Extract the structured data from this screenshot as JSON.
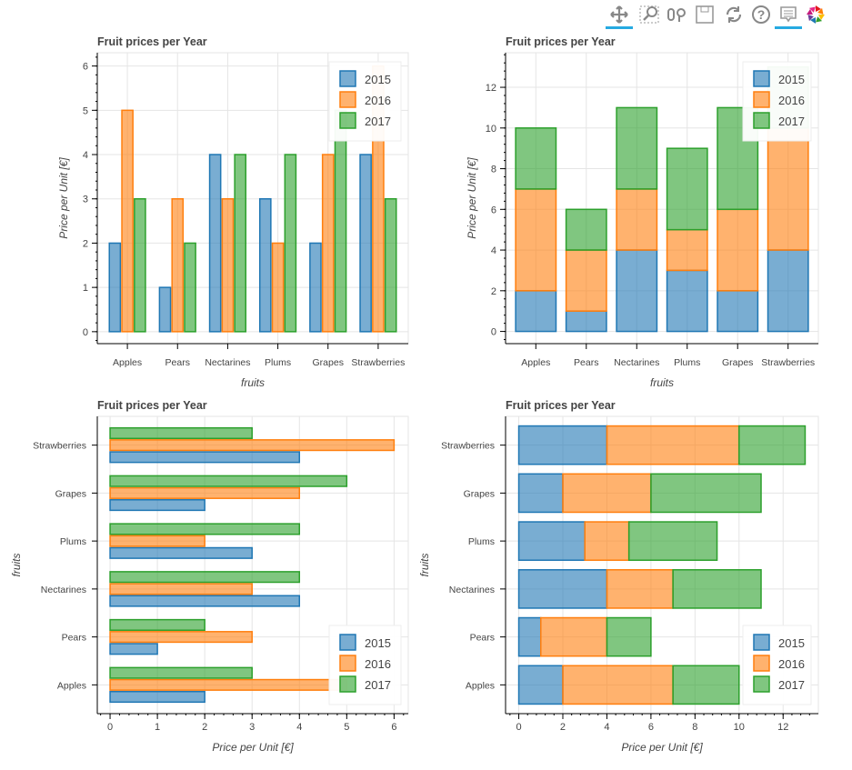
{
  "toolbar": {
    "tools": [
      {
        "icon": "pan-icon",
        "active": true
      },
      {
        "icon": "box-zoom-icon",
        "active": false
      },
      {
        "icon": "wheel-zoom-icon",
        "active": false
      },
      {
        "icon": "save-icon",
        "active": false
      },
      {
        "icon": "reset-icon",
        "active": false
      },
      {
        "icon": "help-icon",
        "active": false
      },
      {
        "icon": "hover-icon",
        "active": true
      },
      {
        "icon": "bokeh-logo-icon",
        "active": false
      }
    ]
  },
  "colors": {
    "2015": "#1f77b4",
    "2016": "#ff7f0e",
    "2017": "#2ca02c"
  },
  "chart_data": [
    {
      "type": "bar",
      "orientation": "vertical",
      "mode": "grouped",
      "title": "Fruit prices per Year",
      "xlabel": "fruits",
      "ylabel": "Price per Unit [€]",
      "categories": [
        "Apples",
        "Pears",
        "Nectarines",
        "Plums",
        "Grapes",
        "Strawberries"
      ],
      "series": [
        {
          "name": "2015",
          "values": [
            2,
            1,
            4,
            3,
            2,
            4
          ]
        },
        {
          "name": "2016",
          "values": [
            5,
            3,
            3,
            2,
            4,
            6
          ]
        },
        {
          "name": "2017",
          "values": [
            3,
            2,
            4,
            4,
            5,
            3
          ]
        }
      ],
      "ylim": [
        -0.27,
        6.3
      ],
      "ticks": [
        0,
        1,
        2,
        3,
        4,
        5,
        6
      ],
      "grid": true,
      "legend": "top-right"
    },
    {
      "type": "bar",
      "orientation": "vertical",
      "mode": "stacked",
      "title": "Fruit prices per Year",
      "xlabel": "fruits",
      "ylabel": "Price per Unit [€]",
      "categories": [
        "Apples",
        "Pears",
        "Nectarines",
        "Plums",
        "Grapes",
        "Strawberries"
      ],
      "series": [
        {
          "name": "2015",
          "values": [
            2,
            1,
            4,
            3,
            2,
            4
          ]
        },
        {
          "name": "2016",
          "values": [
            5,
            3,
            3,
            2,
            4,
            6
          ]
        },
        {
          "name": "2017",
          "values": [
            3,
            2,
            4,
            4,
            5,
            3
          ]
        }
      ],
      "ylim": [
        -0.6,
        13.7
      ],
      "ticks": [
        0,
        2,
        4,
        6,
        8,
        10,
        12
      ],
      "grid": true,
      "legend": "top-right"
    },
    {
      "type": "bar",
      "orientation": "horizontal",
      "mode": "grouped",
      "title": "Fruit prices per Year",
      "xlabel": "Price per Unit [€]",
      "ylabel": "fruits",
      "categories": [
        "Apples",
        "Pears",
        "Nectarines",
        "Plums",
        "Grapes",
        "Strawberries"
      ],
      "series": [
        {
          "name": "2015",
          "values": [
            2,
            1,
            4,
            3,
            2,
            4
          ]
        },
        {
          "name": "2016",
          "values": [
            5,
            3,
            3,
            2,
            4,
            6
          ]
        },
        {
          "name": "2017",
          "values": [
            3,
            2,
            4,
            4,
            5,
            3
          ]
        }
      ],
      "xlim": [
        -0.27,
        6.3
      ],
      "ticks": [
        0,
        1,
        2,
        3,
        4,
        5,
        6
      ],
      "grid": true,
      "legend": "bottom-right"
    },
    {
      "type": "bar",
      "orientation": "horizontal",
      "mode": "stacked",
      "title": "Fruit prices per Year",
      "xlabel": "Price per Unit [€]",
      "ylabel": "fruits",
      "categories": [
        "Apples",
        "Pears",
        "Nectarines",
        "Plums",
        "Grapes",
        "Strawberries"
      ],
      "series": [
        {
          "name": "2015",
          "values": [
            2,
            1,
            4,
            3,
            2,
            4
          ]
        },
        {
          "name": "2016",
          "values": [
            5,
            3,
            3,
            2,
            4,
            6
          ]
        },
        {
          "name": "2017",
          "values": [
            3,
            2,
            4,
            4,
            5,
            3
          ]
        }
      ],
      "xlim": [
        -0.6,
        13.6
      ],
      "ticks": [
        0,
        2,
        4,
        6,
        8,
        10,
        12
      ],
      "grid": true,
      "legend": "bottom-right"
    }
  ]
}
